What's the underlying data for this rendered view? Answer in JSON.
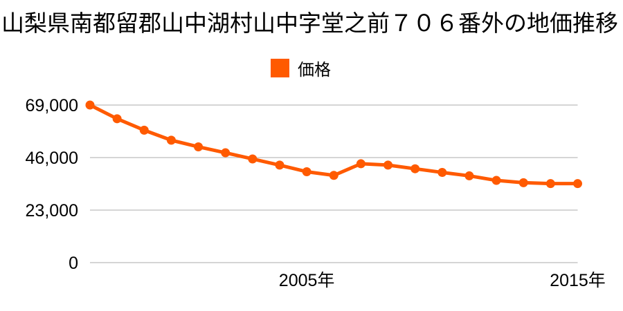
{
  "chart_data": {
    "type": "line",
    "title": "山梨県南都留郡山中湖村山中字堂之前７０６番外の地価推移",
    "series_name": "価格",
    "x": [
      1997,
      1998,
      1999,
      2000,
      2001,
      2002,
      2003,
      2004,
      2005,
      2006,
      2007,
      2008,
      2009,
      2010,
      2011,
      2012,
      2013,
      2014,
      2015
    ],
    "values": [
      69000,
      63000,
      58000,
      53600,
      50700,
      48100,
      45400,
      42700,
      39800,
      38200,
      43300,
      42700,
      41100,
      39500,
      38000,
      36000,
      35000,
      34600,
      34600
    ],
    "ylim": [
      0,
      69000
    ],
    "yticks": [
      0,
      23000,
      46000,
      69000
    ],
    "xticks": [
      {
        "value": 2005,
        "label": "2005年"
      },
      {
        "value": 2015,
        "label": "2015年"
      }
    ],
    "grid": true,
    "legend_position": "top-center",
    "line_color": "#ff5a00",
    "grid_color": "#bcbcbc",
    "axis_text_color": "#000000"
  }
}
